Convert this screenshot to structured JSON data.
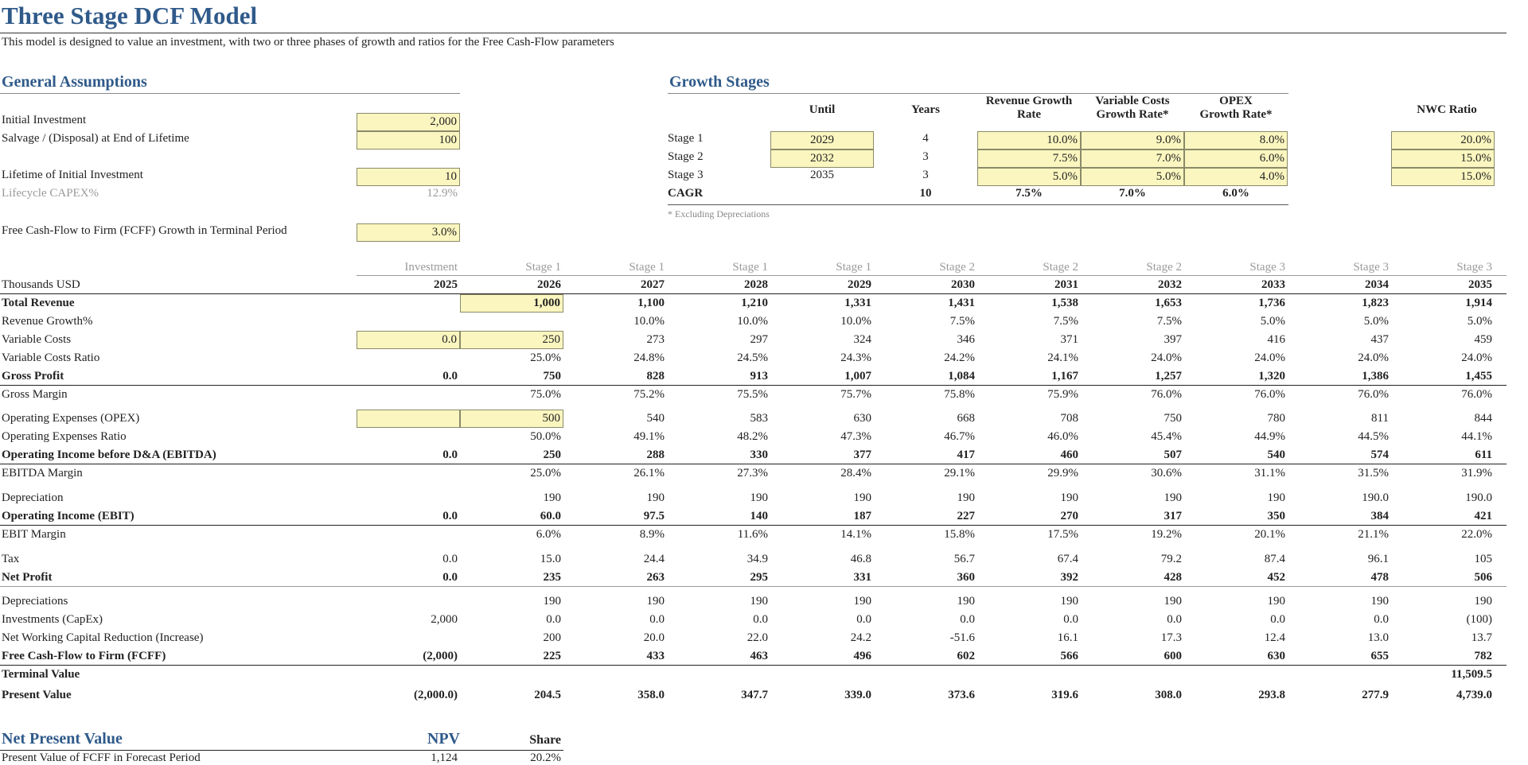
{
  "header": {
    "title": "Three Stage DCF Model",
    "subtitle": "This model is designed to value an investment, with two or three phases of growth and ratios for the Free Cash-Flow parameters"
  },
  "general": {
    "title": "General Assumptions",
    "initial_investment_label": "Initial Investment",
    "initial_investment": "2,000",
    "salvage_label": "Salvage / (Disposal) at End of Lifetime",
    "salvage": "100",
    "lifetime_label": "Lifetime of Initial Investment",
    "lifetime": "10",
    "capex_label": "Lifecycle CAPEX%",
    "capex": "12.9%",
    "fcff_growth_label": "Free Cash-Flow to Firm (FCFF) Growth in Terminal Period",
    "fcff_growth": "3.0%"
  },
  "growth": {
    "title": "Growth Stages",
    "headers": {
      "until": "Until",
      "years": "Years",
      "rev_1": "Revenue Growth",
      "rev_2": "Rate",
      "var_1": "Variable Costs",
      "var_2": "Growth Rate*",
      "opex_1": "OPEX",
      "opex_2": "Growth Rate*",
      "nwc": "NWC Ratio"
    },
    "stages": [
      {
        "label": "Stage 1",
        "until": "2029",
        "years": "4",
        "rev": "10.0%",
        "var": "9.0%",
        "opex": "8.0%",
        "nwc": "20.0%"
      },
      {
        "label": "Stage 2",
        "until": "2032",
        "years": "3",
        "rev": "7.5%",
        "var": "7.0%",
        "opex": "6.0%",
        "nwc": "15.0%"
      },
      {
        "label": "Stage 3",
        "until": "2035",
        "years": "3",
        "rev": "5.0%",
        "var": "5.0%",
        "opex": "4.0%",
        "nwc": "15.0%"
      }
    ],
    "cagr": {
      "label": "CAGR",
      "years": "10",
      "rev": "7.5%",
      "var": "7.0%",
      "opex": "6.0%"
    },
    "note": "* Excluding Depreciations"
  },
  "financials": {
    "stage_headers": [
      "Investment",
      "Stage 1",
      "Stage 1",
      "Stage 1",
      "Stage 1",
      "Stage 2",
      "Stage 2",
      "Stage 2",
      "Stage 3",
      "Stage 3",
      "Stage 3"
    ],
    "units_label": "Thousands USD",
    "years": [
      "2025",
      "2026",
      "2027",
      "2028",
      "2029",
      "2030",
      "2031",
      "2032",
      "2033",
      "2034",
      "2035"
    ],
    "rows": [
      {
        "label": "Total Revenue",
        "values": [
          "",
          "1,000",
          "1,100",
          "1,210",
          "1,331",
          "1,431",
          "1,538",
          "1,653",
          "1,736",
          "1,823",
          "1,914"
        ]
      },
      {
        "label": "Revenue Growth%",
        "values": [
          "",
          "",
          "10.0%",
          "10.0%",
          "10.0%",
          "7.5%",
          "7.5%",
          "7.5%",
          "5.0%",
          "5.0%",
          "5.0%"
        ]
      },
      {
        "label": "Variable Costs",
        "values": [
          "0.0",
          "250",
          "273",
          "297",
          "324",
          "346",
          "371",
          "397",
          "416",
          "437",
          "459"
        ]
      },
      {
        "label": "Variable Costs Ratio",
        "values": [
          "",
          "25.0%",
          "24.8%",
          "24.5%",
          "24.3%",
          "24.2%",
          "24.1%",
          "24.0%",
          "24.0%",
          "24.0%",
          "24.0%"
        ]
      },
      {
        "label": "Gross Profit",
        "values": [
          "0.0",
          "750",
          "828",
          "913",
          "1,007",
          "1,084",
          "1,167",
          "1,257",
          "1,320",
          "1,386",
          "1,455"
        ]
      },
      {
        "label": "Gross Margin",
        "values": [
          "",
          "75.0%",
          "75.2%",
          "75.5%",
          "75.7%",
          "75.8%",
          "75.9%",
          "76.0%",
          "76.0%",
          "76.0%",
          "76.0%"
        ]
      },
      {
        "label": "Operating Expenses (OPEX)",
        "values": [
          "",
          "500",
          "540",
          "583",
          "630",
          "668",
          "708",
          "750",
          "780",
          "811",
          "844"
        ]
      },
      {
        "label": "Operating Expenses Ratio",
        "values": [
          "",
          "50.0%",
          "49.1%",
          "48.2%",
          "47.3%",
          "46.7%",
          "46.0%",
          "45.4%",
          "44.9%",
          "44.5%",
          "44.1%"
        ]
      },
      {
        "label": "Operating Income before D&A (EBITDA)",
        "values": [
          "0.0",
          "250",
          "288",
          "330",
          "377",
          "417",
          "460",
          "507",
          "540",
          "574",
          "611"
        ]
      },
      {
        "label": "EBITDA Margin",
        "values": [
          "",
          "25.0%",
          "26.1%",
          "27.3%",
          "28.4%",
          "29.1%",
          "29.9%",
          "30.6%",
          "31.1%",
          "31.5%",
          "31.9%"
        ]
      },
      {
        "label": "Depreciation",
        "values": [
          "",
          "190",
          "190",
          "190",
          "190",
          "190",
          "190",
          "190",
          "190",
          "190.0",
          "190.0"
        ]
      },
      {
        "label": "Operating Income (EBIT)",
        "values": [
          "0.0",
          "60.0",
          "97.5",
          "140",
          "187",
          "227",
          "270",
          "317",
          "350",
          "384",
          "421"
        ]
      },
      {
        "label": "EBIT Margin",
        "values": [
          "",
          "6.0%",
          "8.9%",
          "11.6%",
          "14.1%",
          "15.8%",
          "17.5%",
          "19.2%",
          "20.1%",
          "21.1%",
          "22.0%"
        ]
      },
      {
        "label": "Tax",
        "values": [
          "0.0",
          "15.0",
          "24.4",
          "34.9",
          "46.8",
          "56.7",
          "67.4",
          "79.2",
          "87.4",
          "96.1",
          "105"
        ]
      },
      {
        "label": "Net Profit",
        "values": [
          "0.0",
          "235",
          "263",
          "295",
          "331",
          "360",
          "392",
          "428",
          "452",
          "478",
          "506"
        ]
      },
      {
        "label": "Depreciations",
        "values": [
          "",
          "190",
          "190",
          "190",
          "190",
          "190",
          "190",
          "190",
          "190",
          "190",
          "190"
        ]
      },
      {
        "label": "Investments (CapEx)",
        "values": [
          "2,000",
          "0.0",
          "0.0",
          "0.0",
          "0.0",
          "0.0",
          "0.0",
          "0.0",
          "0.0",
          "0.0",
          "(100)"
        ]
      },
      {
        "label": "Net Working Capital Reduction (Increase)",
        "values": [
          "",
          "200",
          "20.0",
          "22.0",
          "24.2",
          "-51.6",
          "16.1",
          "17.3",
          "12.4",
          "13.0",
          "13.7"
        ]
      },
      {
        "label": "Free Cash-Flow to Firm (FCFF)",
        "values": [
          "(2,000)",
          "225",
          "433",
          "463",
          "496",
          "602",
          "566",
          "600",
          "630",
          "655",
          "782"
        ]
      },
      {
        "label": "Terminal Value",
        "values": [
          "",
          "",
          "",
          "",
          "",
          "",
          "",
          "",
          "",
          "",
          "11,509.5"
        ]
      },
      {
        "label": "Present Value",
        "values": [
          "(2,000.0)",
          "204.5",
          "358.0",
          "347.7",
          "339.0",
          "373.6",
          "319.6",
          "308.0",
          "293.8",
          "277.9",
          "4,739.0"
        ]
      }
    ]
  },
  "npv": {
    "title": "Net Present Value",
    "npv_header": "NPV",
    "share_header": "Share",
    "pv_label": "Present Value of FCFF in Forecast Period",
    "pv_value": "1,124",
    "pv_share": "20.2%"
  }
}
